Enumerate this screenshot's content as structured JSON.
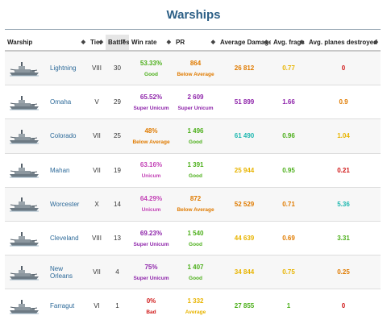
{
  "page": {
    "title": "Warships"
  },
  "colors": {
    "title": "#2c5f86",
    "good": "#4caf1a",
    "below_average": "#e07b00",
    "super_unicum": "#8e24aa",
    "unicum": "#c23fb5",
    "great": "#1fb8b0",
    "average": "#e8b400",
    "bad": "#d01818",
    "ship_link": "#2d6a99"
  },
  "columns": [
    {
      "label": "Warship",
      "sort_icon": "sort-icon"
    },
    {
      "label": "Tier",
      "sort_icon": "sort-icon"
    },
    {
      "label": "Battles",
      "sort_icon": "sort-desc-icon",
      "active": true
    },
    {
      "label": "Win rate",
      "sort_icon": "sort-icon"
    },
    {
      "label": "PR",
      "sort_icon": "sort-icon"
    },
    {
      "label": "Average Damage",
      "sort_icon": "sort-icon"
    },
    {
      "label": "Avg. frags",
      "sort_icon": "sort-icon"
    },
    {
      "label": "Avg. planes destroyed",
      "sort_icon": "sort-icon"
    }
  ],
  "rows": [
    {
      "ship": "Lightning",
      "icon": "destroyer-ship-icon",
      "tier": "VIII",
      "battles": "30",
      "winrate": "53.33%",
      "winrate_label": "Good",
      "winrate_color": "#4caf1a",
      "pr": "864",
      "pr_label": "Below Average",
      "pr_color": "#e07b00",
      "damage": "26 812",
      "damage_color": "#e07b00",
      "frags": "0.77",
      "frags_color": "#e8b400",
      "planes": "0",
      "planes_color": "#d01818"
    },
    {
      "ship": "Omaha",
      "icon": "cruiser-ship-icon",
      "tier": "V",
      "battles": "29",
      "winrate": "65.52%",
      "winrate_label": "Super Unicum",
      "winrate_color": "#8e24aa",
      "pr": "2 609",
      "pr_label": "Super Unicum",
      "pr_color": "#8e24aa",
      "damage": "51 899",
      "damage_color": "#8e24aa",
      "frags": "1.66",
      "frags_color": "#8e24aa",
      "planes": "0.9",
      "planes_color": "#e07b00"
    },
    {
      "ship": "Colorado",
      "icon": "battleship-icon",
      "tier": "VII",
      "battles": "25",
      "winrate": "48%",
      "winrate_label": "Below Average",
      "winrate_color": "#e07b00",
      "pr": "1 496",
      "pr_label": "Good",
      "pr_color": "#4caf1a",
      "damage": "61 490",
      "damage_color": "#1fb8b0",
      "frags": "0.96",
      "frags_color": "#4caf1a",
      "planes": "1.04",
      "planes_color": "#e8b400"
    },
    {
      "ship": "Mahan",
      "icon": "destroyer-ship-icon",
      "tier": "VII",
      "battles": "19",
      "winrate": "63.16%",
      "winrate_label": "Unicum",
      "winrate_color": "#c23fb5",
      "pr": "1 391",
      "pr_label": "Good",
      "pr_color": "#4caf1a",
      "damage": "25 944",
      "damage_color": "#e8b400",
      "frags": "0.95",
      "frags_color": "#4caf1a",
      "planes": "0.21",
      "planes_color": "#d01818"
    },
    {
      "ship": "Worcester",
      "icon": "cruiser-ship-icon",
      "tier": "X",
      "battles": "14",
      "winrate": "64.29%",
      "winrate_label": "Unicum",
      "winrate_color": "#c23fb5",
      "pr": "872",
      "pr_label": "Below Average",
      "pr_color": "#e07b00",
      "damage": "52 529",
      "damage_color": "#e07b00",
      "frags": "0.71",
      "frags_color": "#e07b00",
      "planes": "5.36",
      "planes_color": "#1fb8b0"
    },
    {
      "ship": "Cleveland",
      "icon": "cruiser-ship-icon",
      "tier": "VIII",
      "battles": "13",
      "winrate": "69.23%",
      "winrate_label": "Super Unicum",
      "winrate_color": "#8e24aa",
      "pr": "1 540",
      "pr_label": "Good",
      "pr_color": "#4caf1a",
      "damage": "44 639",
      "damage_color": "#e8b400",
      "frags": "0.69",
      "frags_color": "#e07b00",
      "planes": "3.31",
      "planes_color": "#4caf1a"
    },
    {
      "ship": "New Orleans",
      "icon": "cruiser-ship-icon",
      "tier": "VII",
      "battles": "4",
      "winrate": "75%",
      "winrate_label": "Super Unicum",
      "winrate_color": "#8e24aa",
      "pr": "1 407",
      "pr_label": "Good",
      "pr_color": "#4caf1a",
      "damage": "34 844",
      "damage_color": "#e8b400",
      "frags": "0.75",
      "frags_color": "#e8b400",
      "planes": "0.25",
      "planes_color": "#e07b00"
    },
    {
      "ship": "Farragut",
      "icon": "destroyer-ship-icon",
      "tier": "VI",
      "battles": "1",
      "winrate": "0%",
      "winrate_label": "Bad",
      "winrate_color": "#d01818",
      "pr": "1 332",
      "pr_label": "Average",
      "pr_color": "#e8b400",
      "damage": "27 855",
      "damage_color": "#4caf1a",
      "frags": "1",
      "frags_color": "#4caf1a",
      "planes": "0",
      "planes_color": "#d01818"
    }
  ]
}
